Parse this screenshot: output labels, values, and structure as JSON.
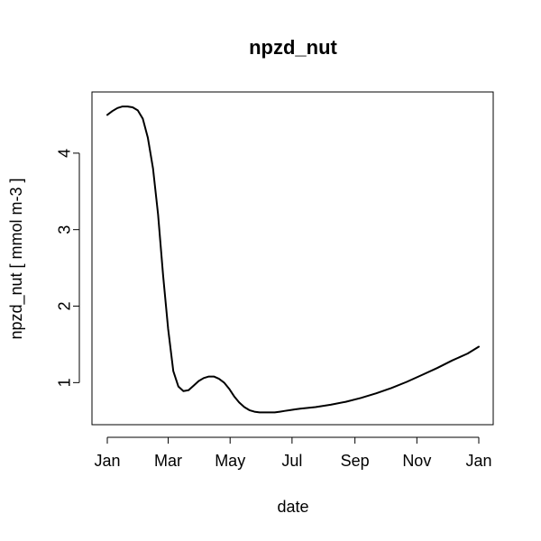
{
  "chart_data": {
    "type": "line",
    "title": "npzd_nut",
    "xlabel": "date",
    "ylabel": "npzd_nut [ mmol m-3 ]",
    "xlim": [
      "2000-01-01",
      "2001-01-01"
    ],
    "ylim": [
      0.45,
      4.8
    ],
    "x_ticks": [
      {
        "date": "2000-01-01",
        "label": "Jan"
      },
      {
        "date": "2000-03-01",
        "label": "Mar"
      },
      {
        "date": "2000-05-01",
        "label": "May"
      },
      {
        "date": "2000-07-01",
        "label": "Jul"
      },
      {
        "date": "2000-09-01",
        "label": "Sep"
      },
      {
        "date": "2000-11-01",
        "label": "Nov"
      },
      {
        "date": "2001-01-01",
        "label": "Jan"
      }
    ],
    "y_ticks": [
      1,
      2,
      3,
      4
    ],
    "grid": false,
    "legend": "none",
    "line_color": "#000000",
    "series": [
      {
        "x": [
          "2000-01-01",
          "2000-01-06",
          "2000-01-11",
          "2000-01-16",
          "2000-01-21",
          "2000-01-26",
          "2000-01-31",
          "2000-02-05",
          "2000-02-10",
          "2000-02-15",
          "2000-02-20",
          "2000-02-25",
          "2000-03-01",
          "2000-03-06",
          "2000-03-11",
          "2000-03-16",
          "2000-03-21",
          "2000-03-26",
          "2000-03-31",
          "2000-04-05",
          "2000-04-10",
          "2000-04-15",
          "2000-04-20",
          "2000-04-25",
          "2000-04-30",
          "2000-05-05",
          "2000-05-10",
          "2000-05-15",
          "2000-05-20",
          "2000-05-25",
          "2000-05-30",
          "2000-06-04",
          "2000-06-09",
          "2000-06-14",
          "2000-06-19",
          "2000-06-24",
          "2000-06-29",
          "2000-07-04",
          "2000-07-09",
          "2000-07-24",
          "2000-08-08",
          "2000-08-23",
          "2000-09-07",
          "2000-09-22",
          "2000-10-07",
          "2000-10-22",
          "2000-11-06",
          "2000-11-21",
          "2000-12-06",
          "2000-12-21",
          "2001-01-01"
        ],
        "y": [
          4.5,
          4.55,
          4.59,
          4.61,
          4.61,
          4.6,
          4.56,
          4.45,
          4.2,
          3.8,
          3.2,
          2.4,
          1.7,
          1.15,
          0.95,
          0.89,
          0.9,
          0.96,
          1.02,
          1.06,
          1.08,
          1.08,
          1.05,
          1.0,
          0.92,
          0.82,
          0.74,
          0.68,
          0.64,
          0.62,
          0.61,
          0.61,
          0.61,
          0.61,
          0.62,
          0.63,
          0.64,
          0.65,
          0.66,
          0.68,
          0.71,
          0.75,
          0.8,
          0.86,
          0.93,
          1.01,
          1.1,
          1.19,
          1.29,
          1.38,
          1.47
        ]
      }
    ]
  }
}
